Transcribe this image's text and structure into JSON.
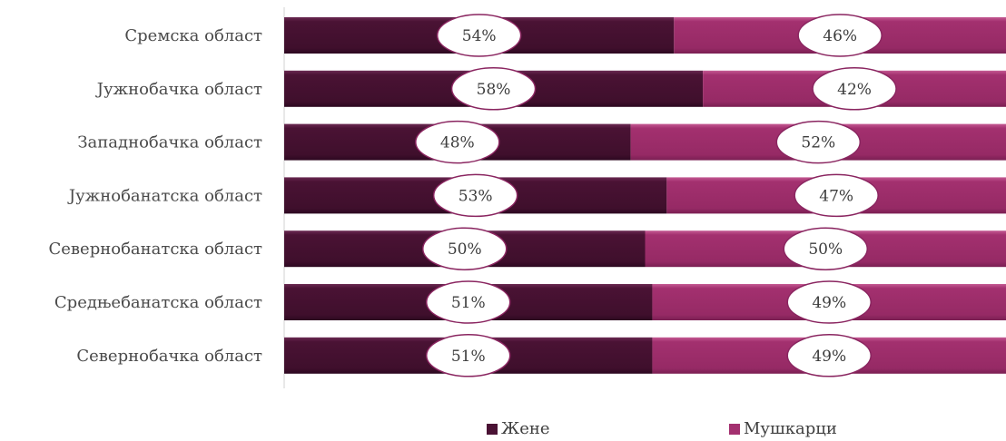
{
  "colors": {
    "women": "#4a1234",
    "men": "#a3306f",
    "label_border": "#8a2560",
    "axis": "#d0d0d0"
  },
  "legend": {
    "women_label": "Жене",
    "men_label": "Мушкарци"
  },
  "chart_data": {
    "type": "bar",
    "orientation": "horizontal",
    "stacked": "percent",
    "title": "",
    "xlabel": "",
    "ylabel": "",
    "xlim": [
      0,
      100
    ],
    "grid": false,
    "legend_position": "bottom",
    "categories": [
      "Сремска област",
      "Јужнобачка област",
      "Западнобачка област",
      "Јужнобанатска област",
      "Севернобанатска област",
      "Средњебанатска област",
      "Севернобачка област"
    ],
    "series": [
      {
        "name": "Жене",
        "values": [
          54,
          58,
          48,
          53,
          50,
          51,
          51
        ]
      },
      {
        "name": "Мушкарци",
        "values": [
          46,
          42,
          52,
          47,
          50,
          49,
          49
        ]
      }
    ]
  }
}
